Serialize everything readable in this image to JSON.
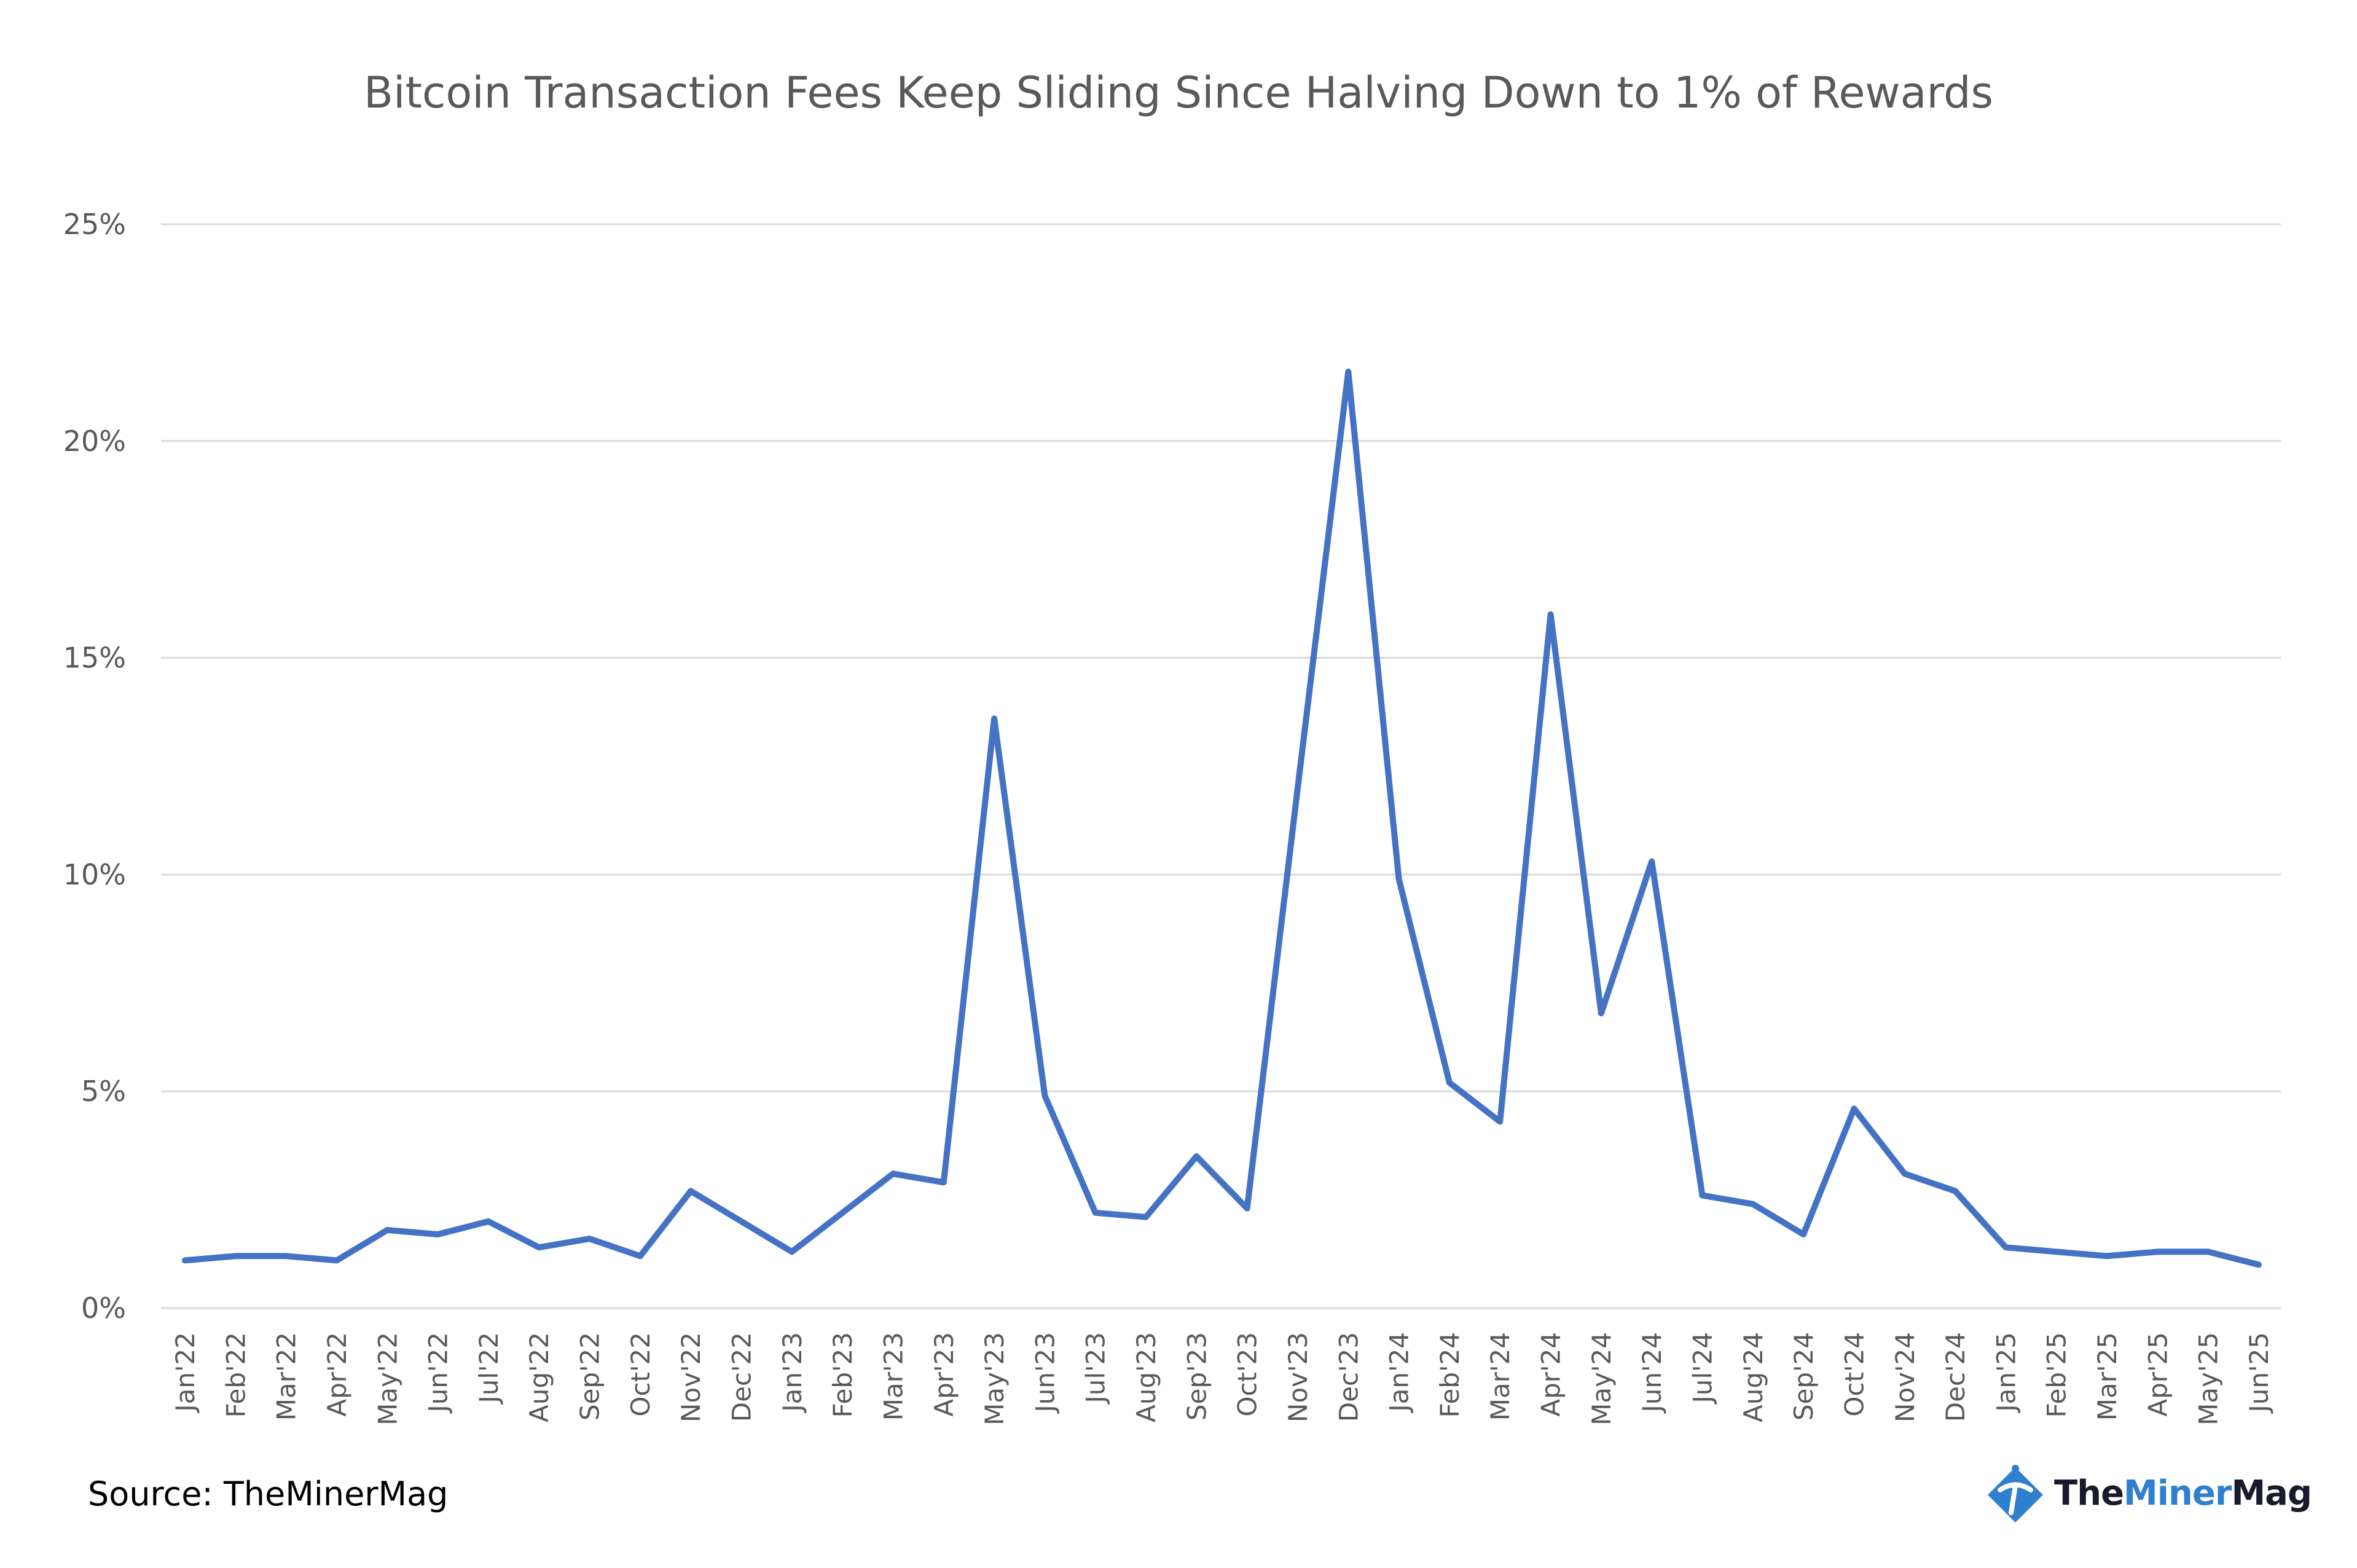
{
  "chart_data": {
    "type": "line",
    "title": "Bitcoin Transaction Fees Keep Sliding Since Halving Down to 1% of Rewards",
    "xlabel": "",
    "ylabel": "",
    "ylim": [
      0,
      25
    ],
    "y_ticks": [
      "0%",
      "5%",
      "10%",
      "15%",
      "20%",
      "25%"
    ],
    "y_tick_values": [
      0,
      5,
      10,
      15,
      20,
      25
    ],
    "grid": true,
    "legend": "none",
    "categories": [
      "Jan'22",
      "Feb'22",
      "Mar'22",
      "Apr'22",
      "May'22",
      "Jun'22",
      "Jul'22",
      "Aug'22",
      "Sep'22",
      "Oct'22",
      "Nov'22",
      "Dec'22",
      "Jan'23",
      "Feb'23",
      "Mar'23",
      "Apr'23",
      "May'23",
      "Jun'23",
      "Jul'23",
      "Aug'23",
      "Sep'23",
      "Oct'23",
      "Nov'23",
      "Dec'23",
      "Jan'24",
      "Feb'24",
      "Mar'24",
      "Apr'24",
      "May'24",
      "Jun'24",
      "Jul'24",
      "Aug'24",
      "Sep'24",
      "Oct'24",
      "Nov'24",
      "Dec'24",
      "Jan'25",
      "Feb'25",
      "Mar'25",
      "Apr'25",
      "May'25",
      "Jun'25"
    ],
    "series": [
      {
        "values": [
          1.1,
          1.2,
          1.2,
          1.1,
          1.8,
          1.7,
          2.0,
          1.4,
          1.6,
          1.2,
          2.7,
          2.0,
          1.3,
          2.2,
          3.1,
          2.9,
          13.6,
          4.9,
          2.2,
          2.1,
          3.5,
          2.3,
          12.0,
          21.6,
          9.9,
          5.2,
          4.3,
          16.0,
          6.8,
          10.3,
          2.6,
          2.4,
          1.7,
          4.6,
          3.1,
          2.7,
          1.4,
          1.3,
          1.2,
          1.3,
          1.3,
          1.0
        ]
      }
    ],
    "colors": {
      "line": "#4472C4",
      "grid": "#d9d9d9",
      "text": "#595959"
    }
  },
  "footer": {
    "source": "Source: TheMinerMag",
    "brand_part1": "The",
    "brand_part2": "Miner",
    "brand_part3": "Mag"
  }
}
